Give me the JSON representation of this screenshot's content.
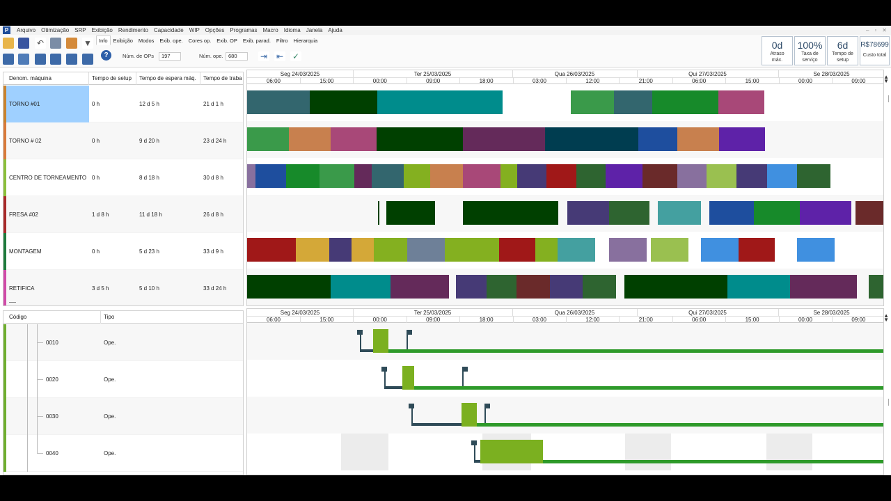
{
  "menu": [
    "Arquivo",
    "Otimização",
    "SRP",
    "Exibição",
    "Rendimento",
    "Capacidade",
    "WIP",
    "Opções",
    "Programas",
    "Macro",
    "Idioma",
    "Janela",
    "Ajuda"
  ],
  "app_logo": "P",
  "window_controls": [
    "–",
    "▫",
    "✕"
  ],
  "tabs": [
    "Info",
    "Exibição",
    "Modos",
    "Exib. ope.",
    "Cores op.",
    "Exib. OP",
    "Exib. parad.",
    "Filtro",
    "Hierarquia"
  ],
  "active_tab": "Info",
  "fields": {
    "num_ops_label": "Núm. de OPs",
    "num_ops_value": "197",
    "num_ope_label": "Núm. ope.",
    "num_ope_value": "680"
  },
  "kpis": [
    {
      "value": "0d",
      "label1": "Atraso",
      "label2": "máx."
    },
    {
      "value": "100%",
      "label1": "Taxa de",
      "label2": "serviço"
    },
    {
      "value": "6d",
      "label1": "Tempo de",
      "label2": "setup"
    },
    {
      "value": "R$78699",
      "label1": "Custo total",
      "label2": ""
    }
  ],
  "machine_grid": {
    "headers": [
      "Denom. máquina",
      "Tempo de setup",
      "Tempo de espera máq.",
      "Tempo de traba"
    ],
    "rows": [
      {
        "name": "TORNO #01",
        "setup": "0 h",
        "wait": "12 d 5 h",
        "work": "21 d 1 h",
        "color": "#c8822e"
      },
      {
        "name": "TORNO # 02",
        "setup": "0 h",
        "wait": "9 d 20 h",
        "work": "23 d 24 h",
        "color": "#d87a3a"
      },
      {
        "name": "CENTRO DE TORNEAMENTO",
        "setup": "0 h",
        "wait": "8 d 18 h",
        "work": "30 d 8 h",
        "color": "#8bbf3a"
      },
      {
        "name": "FRESA #02",
        "setup": "1 d 8 h",
        "wait": "11 d 18 h",
        "work": "26 d 8 h",
        "color": "#a82a2a"
      },
      {
        "name": "MONTAGEM",
        "setup": "0 h",
        "wait": "5 d 23 h",
        "work": "33 d 9 h",
        "color": "#1e7a3c"
      },
      {
        "name": "RETIFICA",
        "setup": "3 d 5 h",
        "wait": "5 d 10 h",
        "work": "33 d 24 h",
        "color": "#d04aa8"
      }
    ]
  },
  "timeline": {
    "days": [
      "Seg 24/03/2025",
      "Ter 25/03/2025",
      "Qua 26/03/2025",
      "Qui 27/03/2025",
      "Se 28/03/2025"
    ],
    "hours": [
      "06:00",
      "15:00",
      "00:00",
      "09:00",
      "18:00",
      "03:00",
      "12:00",
      "21:00",
      "06:00",
      "15:00",
      "00:00",
      "09:00"
    ]
  },
  "operation_grid": {
    "headers": [
      "Código",
      "Tipo"
    ],
    "rows": [
      {
        "code": "0010",
        "type": "Ope."
      },
      {
        "code": "0020",
        "type": "Ope."
      },
      {
        "code": "0030",
        "type": "Ope."
      },
      {
        "code": "0040",
        "type": "Ope."
      }
    ]
  }
}
